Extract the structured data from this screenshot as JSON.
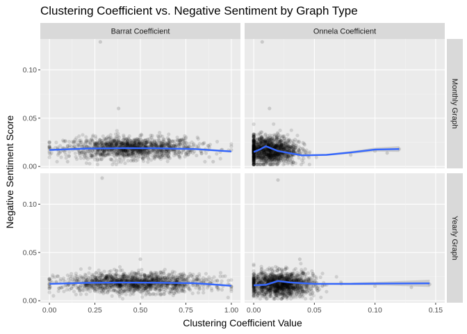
{
  "chart_data": {
    "type": "scatter",
    "title": "Clustering Coefficient vs. Negative Sentiment by Graph Type",
    "xlabel": "Clustering Coefficient Value",
    "ylabel": "Negative Sentiment Score",
    "facet_columns": [
      "Barrat Coefficient",
      "Onnela Coefficient"
    ],
    "facet_rows": [
      "Monthly Graph",
      "Yearly Graph"
    ],
    "y_ticks": [
      "0.00",
      "0.05",
      "0.10"
    ],
    "ylim": [
      -0.002,
      0.132
    ],
    "grid": true,
    "colors": {
      "points": "#000000",
      "smooth_line": "#3366FF",
      "confidence_band": "#999999",
      "panel_bg": "#EBEBEB",
      "strip_bg": "#D9D9D9"
    },
    "panels": [
      {
        "facet_column": "Barrat Coefficient",
        "facet_row": "Monthly Graph",
        "x_ticks": [],
        "xlim": [
          -0.05,
          1.05
        ],
        "point_cloud": {
          "x_center": 0.45,
          "x_spread": 0.18,
          "x_range": [
            0.0,
            1.0
          ],
          "y_center": 0.019,
          "y_spread": 0.0055,
          "n": 1400
        },
        "outliers": [
          [
            0.28,
            0.129
          ],
          [
            0.38,
            0.06
          ],
          [
            0.0,
            0.018
          ],
          [
            1.0,
            0.017
          ],
          [
            1.0,
            0.021
          ],
          [
            0.1,
            0.005
          ],
          [
            0.9,
            0.005
          ]
        ],
        "smooth": {
          "x": [
            0.0,
            0.2,
            0.4,
            0.6,
            0.8,
            1.0
          ],
          "y": [
            0.017,
            0.0185,
            0.019,
            0.0188,
            0.018,
            0.0155
          ],
          "band": 0.001
        }
      },
      {
        "facet_column": "Onnela Coefficient",
        "facet_row": "Monthly Graph",
        "x_ticks": [],
        "xlim": [
          -0.0075,
          0.1575
        ],
        "point_cloud": {
          "x_center": 0.012,
          "x_spread": 0.012,
          "x_range": [
            0.0,
            0.1
          ],
          "y_center": 0.017,
          "y_spread": 0.0075,
          "n": 1400
        },
        "outliers": [
          [
            0.007,
            0.129
          ],
          [
            0.013,
            0.06
          ],
          [
            0.1,
            0.016
          ],
          [
            0.08,
            0.012
          ],
          [
            0.12,
            0.018
          ],
          [
            0.11,
            0.014
          ]
        ],
        "smooth": {
          "x": [
            0.0,
            0.005,
            0.01,
            0.02,
            0.04,
            0.06,
            0.08,
            0.1,
            0.12
          ],
          "y": [
            0.015,
            0.0175,
            0.021,
            0.016,
            0.0115,
            0.012,
            0.0145,
            0.0175,
            0.018
          ],
          "band_min": 0.001,
          "band_growth": 0.04
        }
      },
      {
        "facet_column": "Barrat Coefficient",
        "facet_row": "Yearly Graph",
        "x_ticks": [
          "0.00",
          "0.25",
          "0.50",
          "0.75",
          "1.00"
        ],
        "xlim": [
          -0.05,
          1.05
        ],
        "point_cloud": {
          "x_center": 0.47,
          "x_spread": 0.2,
          "x_range": [
            0.0,
            1.0
          ],
          "y_center": 0.0185,
          "y_spread": 0.005,
          "n": 1500
        },
        "outliers": [
          [
            0.29,
            0.127
          ],
          [
            0.5,
            0.043
          ],
          [
            0.0,
            0.017
          ],
          [
            1.0,
            0.015
          ],
          [
            1.0,
            0.012
          ],
          [
            0.0,
            0.023
          ]
        ],
        "smooth": {
          "x": [
            0.0,
            0.2,
            0.4,
            0.6,
            0.8,
            1.0
          ],
          "y": [
            0.0175,
            0.0185,
            0.0188,
            0.0187,
            0.0182,
            0.0155
          ],
          "band": 0.001
        }
      },
      {
        "facet_column": "Onnela Coefficient",
        "facet_row": "Yearly Graph",
        "x_ticks": [
          "0.00",
          "0.05",
          "0.10",
          "0.15"
        ],
        "xlim": [
          -0.0075,
          0.1575
        ],
        "point_cloud": {
          "x_center": 0.022,
          "x_spread": 0.014,
          "x_range": [
            0.0,
            0.145
          ],
          "y_center": 0.017,
          "y_spread": 0.0065,
          "n": 1400
        },
        "outliers": [
          [
            0.02,
            0.125
          ],
          [
            0.038,
            0.043
          ],
          [
            0.1,
            0.015
          ],
          [
            0.13,
            0.014
          ],
          [
            0.145,
            0.017
          ]
        ],
        "smooth": {
          "x": [
            0.0,
            0.01,
            0.02,
            0.03,
            0.05,
            0.08,
            0.11,
            0.145
          ],
          "y": [
            0.016,
            0.0165,
            0.0205,
            0.019,
            0.0175,
            0.0175,
            0.0178,
            0.018
          ],
          "band_min": 0.001,
          "band_growth": 0.03
        }
      }
    ]
  }
}
